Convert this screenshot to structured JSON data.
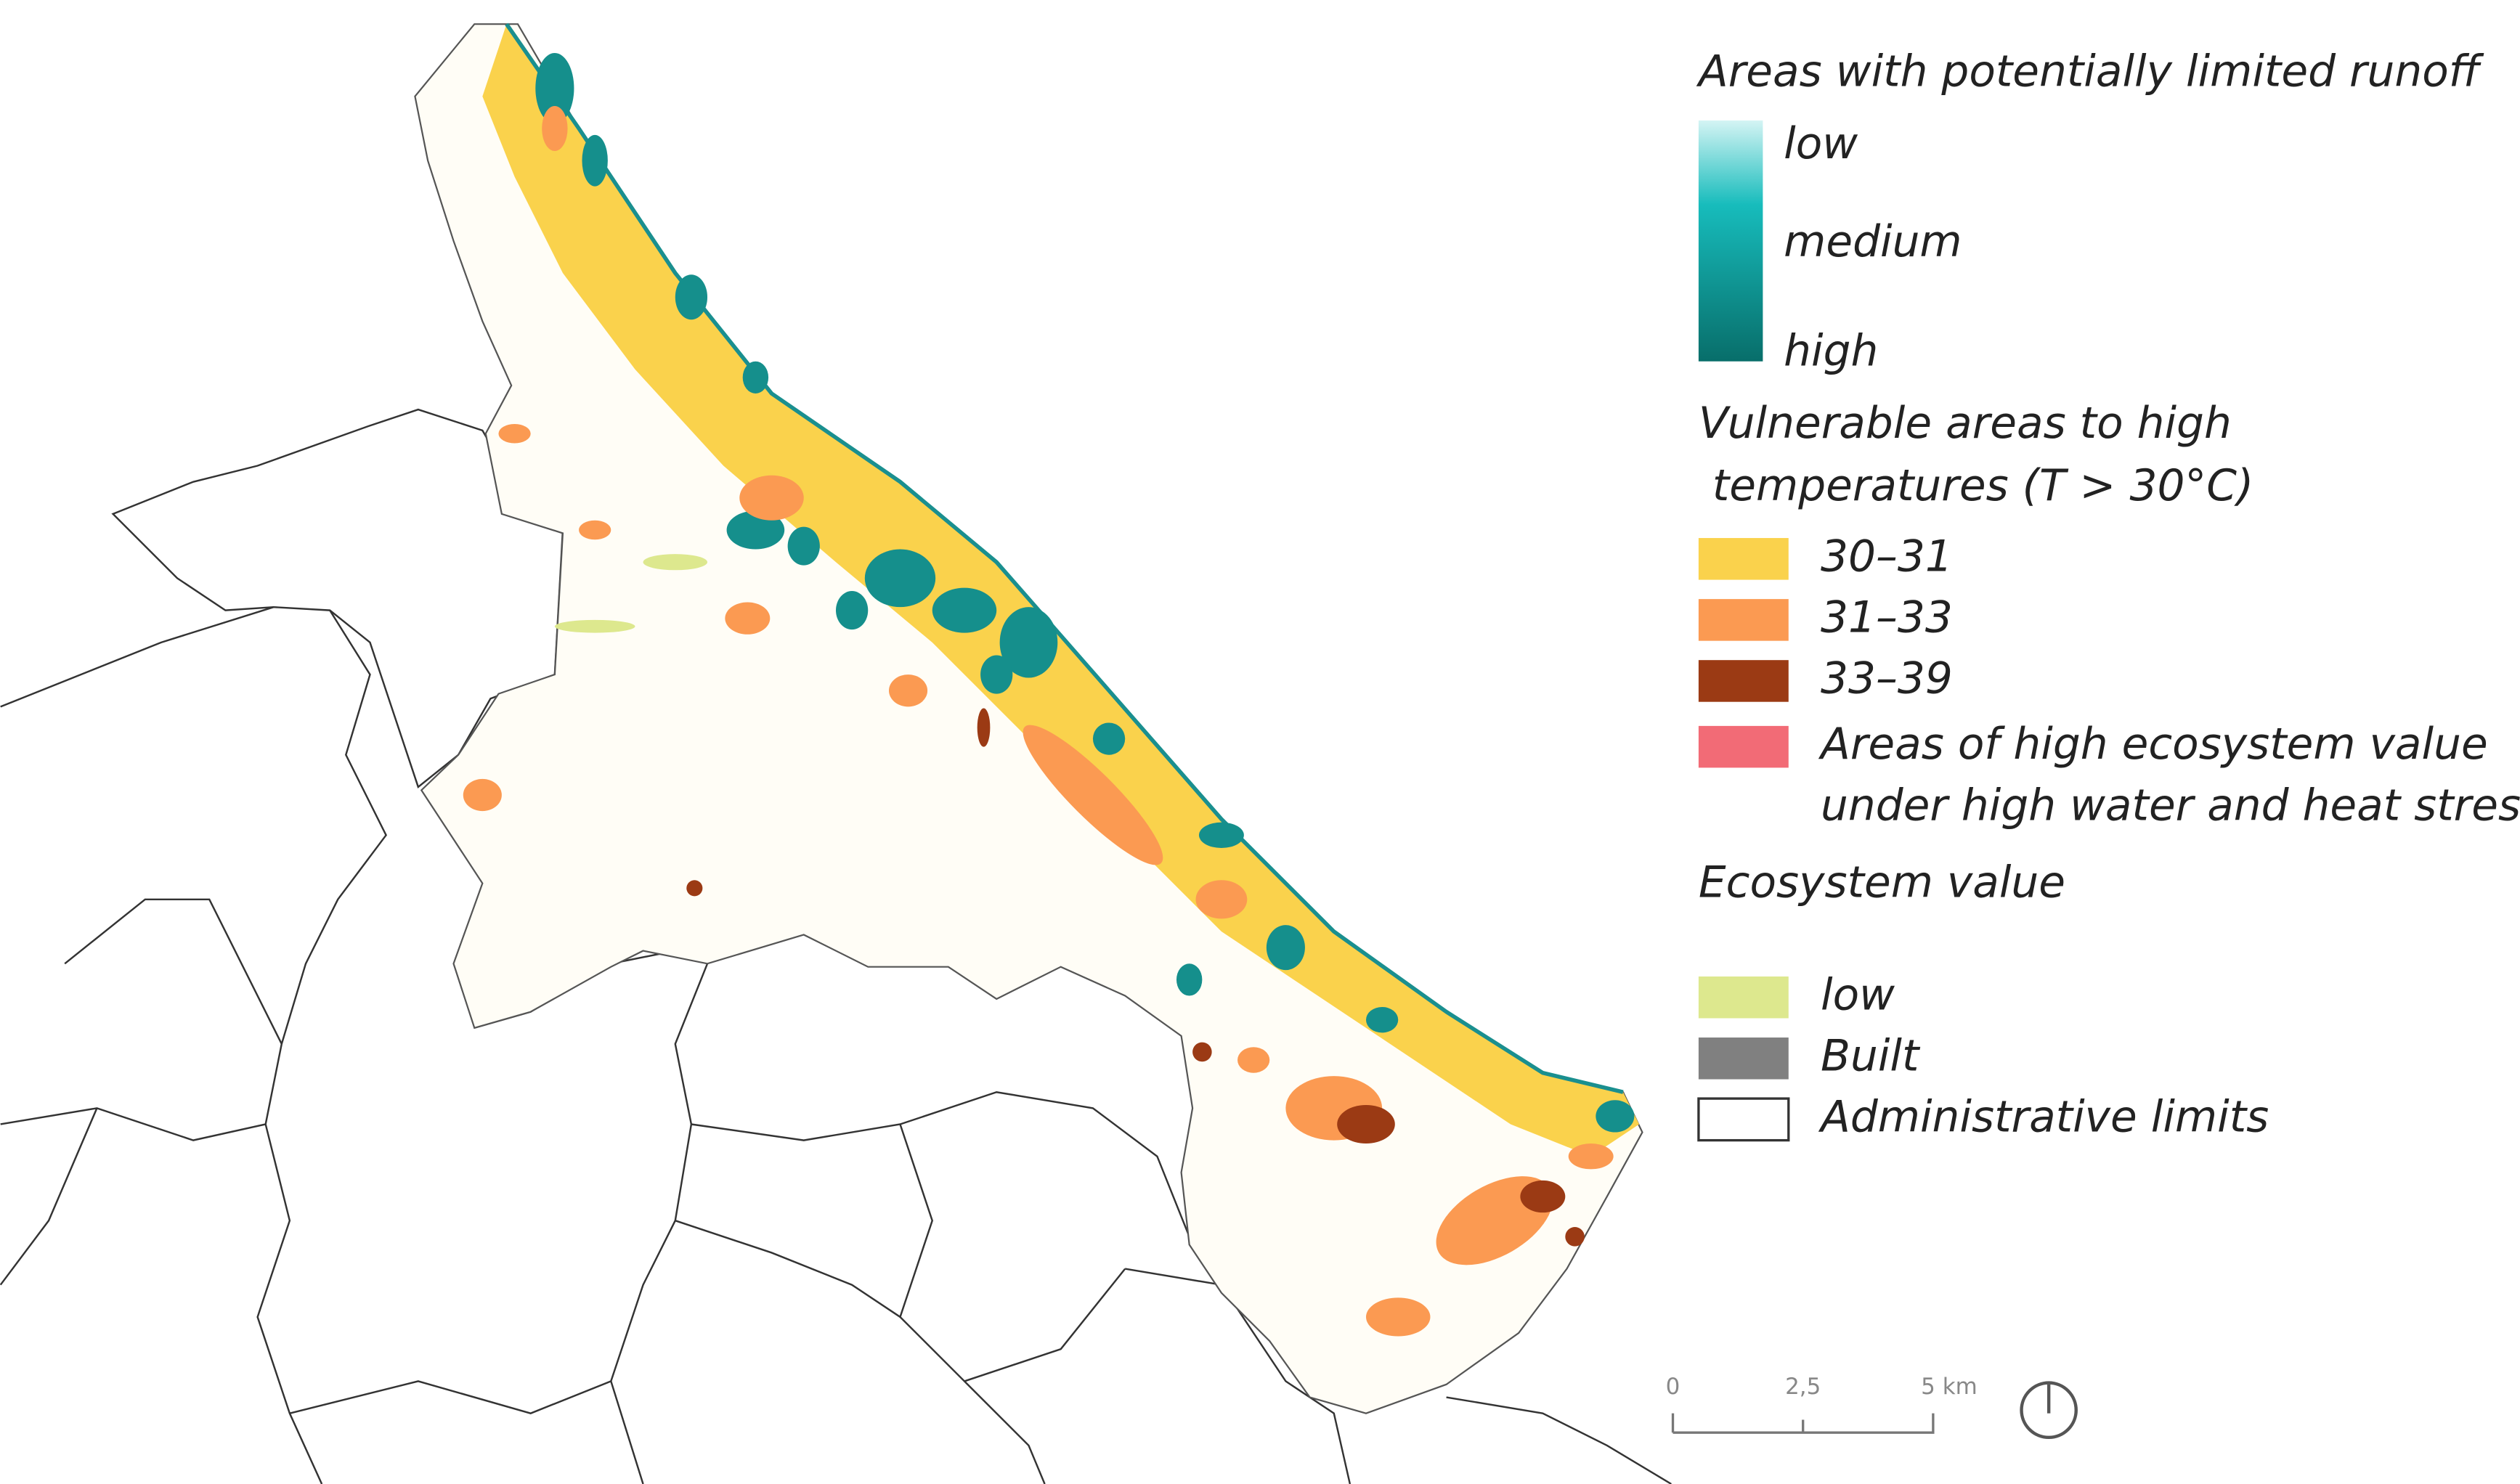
{
  "legend": {
    "runoff": {
      "title": "Areas with potentially limited runoff",
      "labels": [
        "low",
        "medium",
        "high"
      ]
    },
    "temperature": {
      "title_lines": [
        "Vulnerable areas to high",
        " temperatures (T > 30°C)"
      ],
      "items": [
        {
          "label": "30–31",
          "color": "#fad24c"
        },
        {
          "label": "31–33",
          "color": "#fb9a52"
        },
        {
          "label": "33–39",
          "color": "#9b3a14"
        }
      ]
    },
    "high_value": {
      "lines": [
        "Areas of high ecosystem value",
        "under high water and heat stress"
      ],
      "color": "#f26b76"
    },
    "ecosystem": {
      "title": "Ecosystem value",
      "items": [
        {
          "label": "low",
          "color": "#dde88e"
        },
        {
          "label": "Built",
          "color": "#808080"
        },
        {
          "label": "Administrative limits",
          "color": "#ffffff"
        }
      ]
    }
  },
  "scale_bar": {
    "labels": [
      "0",
      "2,5",
      "5 km"
    ]
  }
}
